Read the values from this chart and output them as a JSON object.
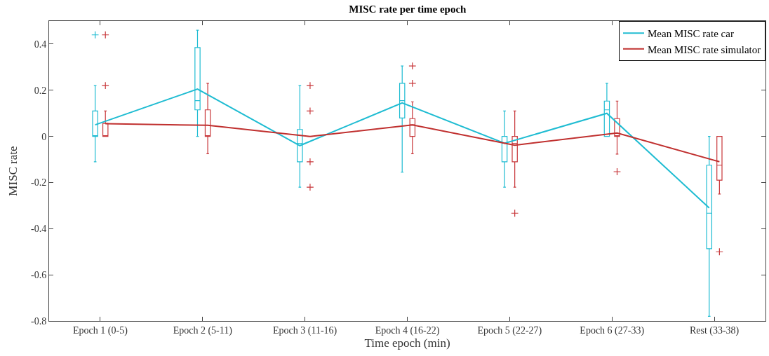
{
  "chart_data": {
    "type": "box",
    "title": "MISC rate per time epoch",
    "xlabel": "Time epoch (min)",
    "ylabel": "MISC rate",
    "categories": [
      "Epoch 1 (0-5)",
      "Epoch 2 (5-11)",
      "Epoch 3 (11-16)",
      "Epoch 4 (16-22)",
      "Epoch 5 (22-27)",
      "Epoch 6 (27-33)",
      "Rest (33-38)"
    ],
    "ylim": [
      -0.8,
      0.5
    ],
    "yticks": [
      -0.8,
      -0.6,
      -0.4,
      -0.2,
      0,
      0.2,
      0.4
    ],
    "legend": "top right",
    "line_style": "solid",
    "series": [
      {
        "color": "#1fbcd2",
        "boxes": [
          {
            "low": -0.11,
            "q1": 0,
            "median": 0,
            "q3": 0.11,
            "high": 0.22,
            "outliers": [
              0.44
            ]
          },
          {
            "low": 0,
            "q1": 0.115,
            "median": 0.155,
            "q3": 0.385,
            "high": 0.46
          },
          {
            "low": -0.22,
            "q1": -0.11,
            "median": -0.03,
            "q3": 0.03,
            "high": 0.22
          },
          {
            "low": -0.155,
            "q1": 0.08,
            "median": 0.155,
            "q3": 0.23,
            "high": 0.305
          },
          {
            "low": -0.22,
            "q1": -0.11,
            "median": -0.03,
            "q3": 0,
            "high": 0.11
          },
          {
            "low": 0,
            "q1": 0,
            "median": 0.115,
            "q3": 0.153,
            "high": 0.23
          },
          {
            "low": -0.78,
            "q1": -0.487,
            "median": -0.333,
            "q3": -0.125,
            "high": 0
          }
        ]
      },
      {
        "color": "#c8373a",
        "boxes": [
          {
            "low": 0,
            "q1": 0,
            "median": 0,
            "q3": 0.056,
            "high": 0.11,
            "outliers": [
              0.22,
              0.44
            ]
          },
          {
            "low": -0.075,
            "q1": 0,
            "median": 0,
            "q3": 0.115,
            "high": 0.23
          },
          {
            "low": 0,
            "q1": 0,
            "median": 0,
            "q3": 0,
            "high": 0,
            "outliers": [
              0.22,
              0.11,
              -0.11,
              -0.22
            ]
          },
          {
            "low": -0.075,
            "q1": 0,
            "median": 0.05,
            "q3": 0.077,
            "high": 0.15,
            "outliers": [
              0.305,
              0.23
            ]
          },
          {
            "low": -0.22,
            "q1": -0.11,
            "median": -0.03,
            "q3": 0,
            "high": 0.11,
            "outliers": [
              -0.333
            ]
          },
          {
            "low": -0.077,
            "q1": 0,
            "median": 0,
            "q3": 0.077,
            "high": 0.153,
            "outliers": [
              -0.153
            ]
          },
          {
            "low": -0.25,
            "q1": -0.19,
            "median": -0.125,
            "q3": 0,
            "high": 0,
            "outliers": [
              -0.5
            ]
          }
        ]
      },
      {
        "type": "line",
        "name": "Mean MISC rate car",
        "color": "#1fbcd2",
        "values": [
          0.05,
          0.205,
          -0.04,
          0.145,
          -0.03,
          0.1,
          -0.31
        ]
      },
      {
        "type": "line",
        "name": "Mean MISC rate simulator",
        "color": "#c0302f",
        "values": [
          0.055,
          0.048,
          0,
          0.05,
          -0.038,
          0.015,
          -0.11
        ]
      }
    ]
  }
}
